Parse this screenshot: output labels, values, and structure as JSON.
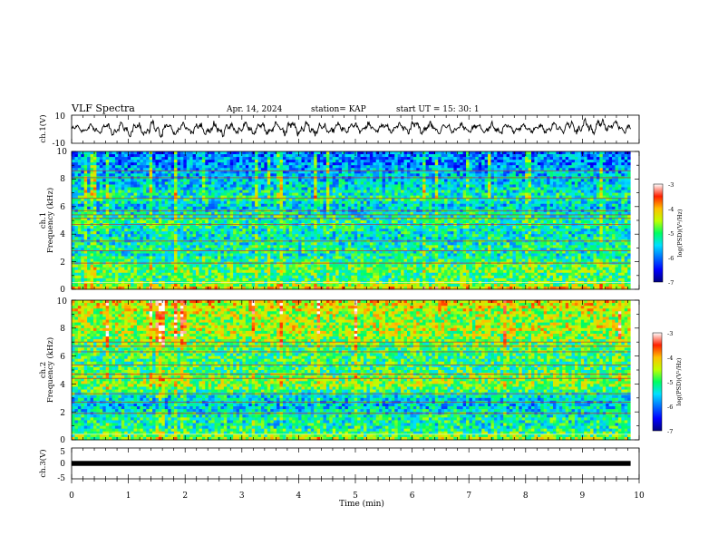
{
  "header": {
    "title": "VLF Spectra",
    "date": "Apr. 14, 2024",
    "station": "station= KAP",
    "start": "start UT = 15: 30: 1"
  },
  "chart_data": [
    {
      "type": "line",
      "panel": "waveform",
      "ylabel": "ch.1(V)",
      "ylim": [
        -10,
        10
      ],
      "yticks": [
        "10",
        "-10"
      ],
      "xlim": [
        0,
        10
      ],
      "x_extent": [
        0,
        9.85
      ],
      "envelope": [
        [
          0.0,
          3,
          -2
        ],
        [
          0.5,
          4,
          -4
        ],
        [
          1.0,
          5,
          -5
        ],
        [
          1.5,
          6,
          -6
        ],
        [
          2.0,
          5,
          -4
        ],
        [
          2.5,
          5,
          -5
        ],
        [
          3.0,
          6,
          -5
        ],
        [
          3.5,
          5,
          -4
        ],
        [
          4.0,
          7,
          -5
        ],
        [
          4.5,
          5,
          -5
        ],
        [
          5.0,
          5,
          -3
        ],
        [
          5.5,
          5,
          -3
        ],
        [
          6.0,
          7,
          -4
        ],
        [
          6.5,
          4,
          -3
        ],
        [
          7.0,
          5,
          -3
        ],
        [
          7.5,
          5,
          -4
        ],
        [
          8.0,
          4,
          -3
        ],
        [
          8.5,
          5,
          -3
        ],
        [
          9.0,
          7,
          -4
        ],
        [
          9.5,
          8,
          -2
        ],
        [
          9.85,
          3,
          -3
        ]
      ]
    },
    {
      "type": "heatmap",
      "panel": "ch1",
      "ylabel_channel": "ch.1",
      "ylabel": "Frequency (kHz)",
      "ylim": [
        0,
        10
      ],
      "yticks": [
        "0",
        "2",
        "4",
        "6",
        "8",
        "10"
      ],
      "xlim": [
        0,
        10
      ],
      "x_extent": [
        0,
        9.85
      ],
      "profile": [
        [
          0.0,
          -4.0
        ],
        [
          0.3,
          -4.6
        ],
        [
          0.6,
          -5.0
        ],
        [
          1.0,
          -5.0
        ],
        [
          1.5,
          -4.8
        ],
        [
          2.0,
          -5.0
        ],
        [
          2.5,
          -5.3
        ],
        [
          3.0,
          -5.2
        ],
        [
          3.5,
          -5.3
        ],
        [
          4.0,
          -5.4
        ],
        [
          4.5,
          -5.2
        ],
        [
          5.0,
          -5.1
        ],
        [
          5.5,
          -5.3
        ],
        [
          6.0,
          -5.6
        ],
        [
          6.5,
          -5.2
        ],
        [
          7.0,
          -5.3
        ],
        [
          7.5,
          -5.5
        ],
        [
          8.0,
          -5.6
        ],
        [
          8.5,
          -5.7
        ],
        [
          9.0,
          -5.9
        ],
        [
          9.5,
          -5.9
        ],
        [
          10.0,
          -6.0
        ]
      ],
      "lines_khz": [
        0.5,
        1.9,
        2.8,
        3.5,
        4.7,
        5.15,
        5.4,
        5.7,
        6.6,
        8.1,
        8.6
      ],
      "colorbar": {
        "label": "log(PSD)(V²/Hz)",
        "range": [
          -7,
          -3
        ],
        "ticks": [
          "-3",
          "-4",
          "-5",
          "-6",
          "-7"
        ]
      }
    },
    {
      "type": "heatmap",
      "panel": "ch2",
      "ylabel_channel": "ch.2",
      "ylabel": "Frequency (kHz)",
      "ylim": [
        0,
        10
      ],
      "yticks": [
        "0",
        "2",
        "4",
        "6",
        "8",
        "10"
      ],
      "xlim": [
        0,
        10
      ],
      "x_extent": [
        0,
        9.85
      ],
      "profile": [
        [
          0.0,
          -4.5
        ],
        [
          0.5,
          -5.0
        ],
        [
          1.0,
          -5.3
        ],
        [
          1.5,
          -5.2
        ],
        [
          2.0,
          -5.4
        ],
        [
          2.5,
          -5.6
        ],
        [
          3.0,
          -5.5
        ],
        [
          3.5,
          -5.0
        ],
        [
          4.0,
          -4.6
        ],
        [
          4.5,
          -4.7
        ],
        [
          5.0,
          -5.0
        ],
        [
          5.5,
          -5.0
        ],
        [
          6.0,
          -5.0
        ],
        [
          6.5,
          -4.9
        ],
        [
          7.0,
          -4.8
        ],
        [
          7.5,
          -4.6
        ],
        [
          8.0,
          -4.4
        ],
        [
          8.5,
          -4.6
        ],
        [
          9.0,
          -4.5
        ],
        [
          9.5,
          -4.3
        ],
        [
          10.0,
          -4.2
        ]
      ],
      "lines_khz": [
        0.4,
        1.9,
        2.7,
        3.3,
        4.4,
        4.7,
        5.35,
        6.3,
        6.7,
        7.0
      ],
      "colorbar": {
        "label": "log(PSD)(V²/Hz)",
        "range": [
          -7,
          -3
        ],
        "ticks": [
          "-3",
          "-4",
          "-5",
          "-6",
          "-7"
        ]
      }
    },
    {
      "type": "line",
      "panel": "ch3",
      "ylabel": "ch.3(V)",
      "ylim": [
        -5,
        5
      ],
      "yticks": [
        "5",
        "0",
        "-5"
      ],
      "xlim": [
        0,
        10
      ],
      "x_extent": [
        0,
        9.85
      ],
      "value_band": [
        -0.8,
        0.8
      ]
    }
  ],
  "x_axis": {
    "label": "Time (min)",
    "ticks": [
      "0",
      "1",
      "2",
      "3",
      "4",
      "5",
      "6",
      "7",
      "8",
      "9",
      "10"
    ]
  }
}
